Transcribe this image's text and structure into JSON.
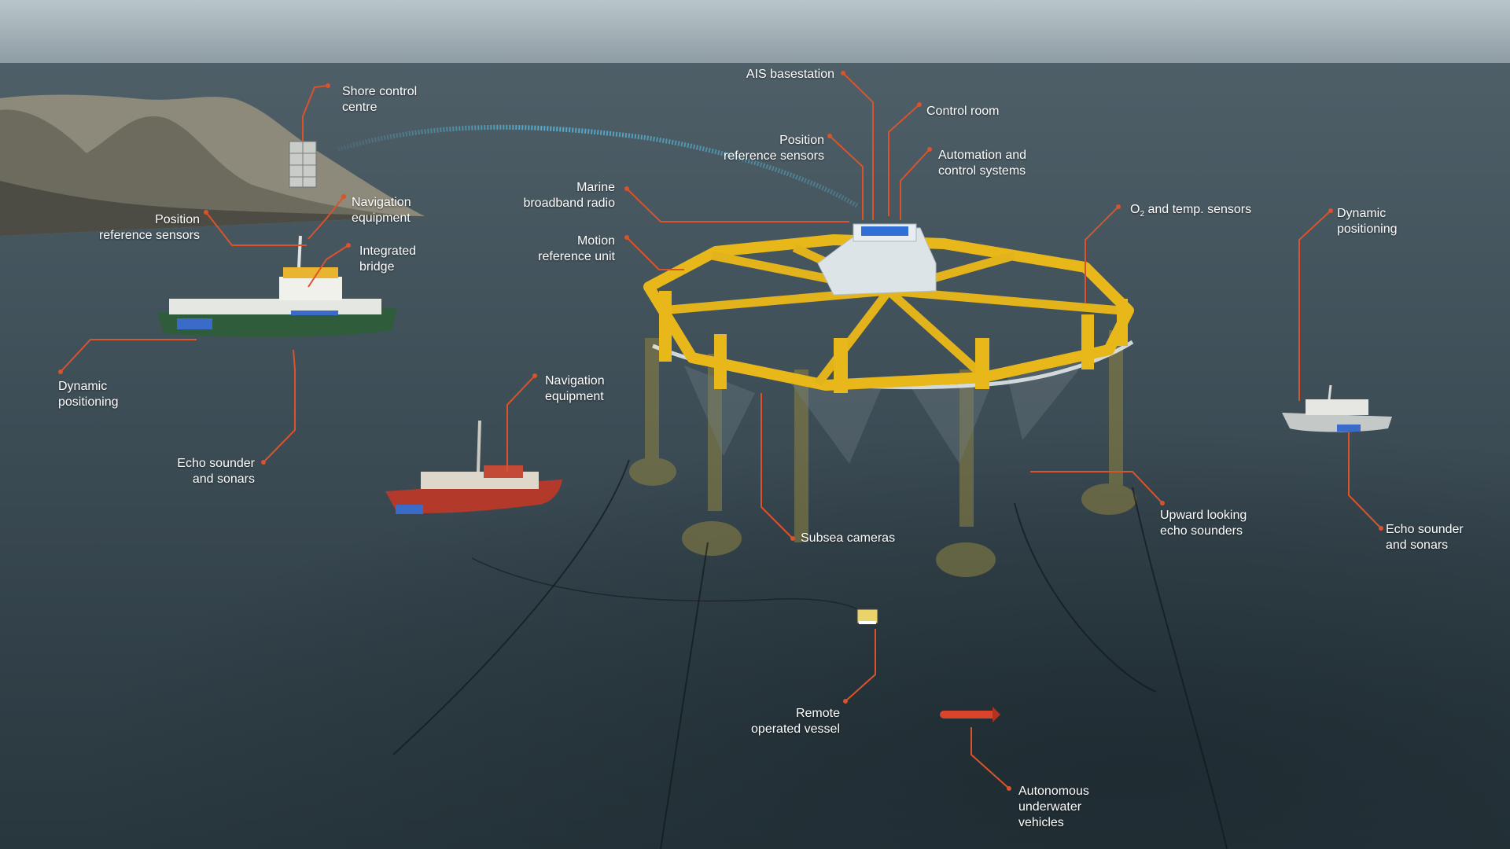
{
  "colors": {
    "leader_line": "#d9532b",
    "structure": "#e8b81a",
    "sea": "#38474f",
    "sky": "#a9b7bd",
    "radio_link": "#58b8d8"
  },
  "icons": [
    "shore-control-building-icon",
    "vessel-icon",
    "rov-icon",
    "auv-icon",
    "fish-farm-rig-icon"
  ],
  "labels": {
    "shore_control": [
      "Shore control",
      "centre"
    ],
    "nav_equipment_left": [
      "Navigation",
      "equipment"
    ],
    "position_sensors_left": [
      "Position",
      "reference sensors"
    ],
    "integrated_bridge": [
      "Integrated",
      "bridge"
    ],
    "dynamic_positioning_left": [
      "Dynamic",
      "positioning"
    ],
    "echo_sounder_left": [
      "Echo sounder",
      "and sonars"
    ],
    "nav_equipment_mid": [
      "Navigation",
      "equipment"
    ],
    "ais_basestation": "AIS basestation",
    "control_room": "Control room",
    "position_sensors_center": [
      "Position",
      "reference sensors"
    ],
    "automation": [
      "Automation and",
      "control systems"
    ],
    "marine_broadband": [
      "Marine",
      "broadband radio"
    ],
    "motion_reference": [
      "Motion",
      "reference unit"
    ],
    "o2_main": "O",
    "o2_sub": "2",
    "o2_rest": " and temp. sensors",
    "dynamic_positioning_right": [
      "Dynamic",
      "positioning"
    ],
    "upward_echo": [
      "Upward looking",
      "echo sounders"
    ],
    "echo_sounder_right": [
      "Echo sounder",
      "and sonars"
    ],
    "subsea_cameras": "Subsea cameras",
    "rov": [
      "Remote",
      "operated vessel"
    ],
    "auv": [
      "Autonomous",
      "underwater",
      "vehicles"
    ]
  }
}
